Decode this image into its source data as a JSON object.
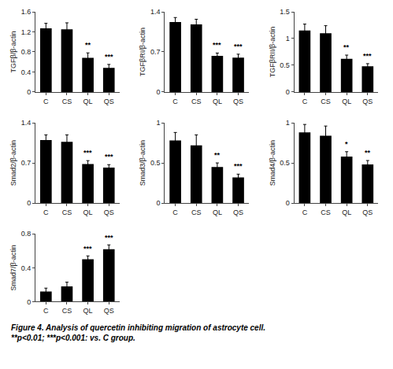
{
  "chart_data": [
    {
      "type": "bar",
      "ylabel": "TGFβ/β-actin",
      "categories": [
        "C",
        "CS",
        "QL",
        "QS"
      ],
      "values": [
        1.27,
        1.25,
        0.68,
        0.48
      ],
      "errors": [
        0.1,
        0.13,
        0.1,
        0.07
      ],
      "color": "#000000",
      "ylim": [
        0,
        1.6
      ],
      "yticks": [
        0,
        0.4,
        0.8,
        1.2,
        1.6
      ],
      "grid": false,
      "annotations": [
        {
          "x": "QL",
          "text": "**"
        },
        {
          "x": "QS",
          "text": "***"
        }
      ]
    },
    {
      "type": "bar",
      "ylabel": "TGFβRI/β-actin",
      "categories": [
        "C",
        "CS",
        "QL",
        "QS"
      ],
      "values": [
        1.22,
        1.18,
        0.63,
        0.6
      ],
      "errors": [
        0.08,
        0.09,
        0.05,
        0.06
      ],
      "color": "#000000",
      "ylim": [
        0,
        1.4
      ],
      "yticks": [
        0,
        0.7,
        1.4
      ],
      "grid": false,
      "annotations": [
        {
          "x": "QL",
          "text": "***"
        },
        {
          "x": "QS",
          "text": "***"
        }
      ]
    },
    {
      "type": "bar",
      "ylabel": "TGFβRII/β-actin",
      "categories": [
        "C",
        "CS",
        "QL",
        "QS"
      ],
      "values": [
        1.15,
        1.1,
        0.62,
        0.48
      ],
      "errors": [
        0.12,
        0.14,
        0.07,
        0.05
      ],
      "color": "#000000",
      "ylim": [
        0,
        1.5
      ],
      "yticks": [
        0,
        0.5,
        1,
        1.5
      ],
      "grid": false,
      "annotations": [
        {
          "x": "QL",
          "text": "**"
        },
        {
          "x": "QS",
          "text": "***"
        }
      ]
    },
    {
      "type": "bar",
      "ylabel": "Smad2/β-actin",
      "categories": [
        "C",
        "CS",
        "QL",
        "QS"
      ],
      "values": [
        1.1,
        1.07,
        0.68,
        0.62
      ],
      "errors": [
        0.09,
        0.12,
        0.06,
        0.05
      ],
      "color": "#000000",
      "ylim": [
        0,
        1.4
      ],
      "yticks": [
        0,
        0.7,
        1.4
      ],
      "grid": false,
      "annotations": [
        {
          "x": "QL",
          "text": "***"
        },
        {
          "x": "QS",
          "text": "***"
        }
      ]
    },
    {
      "type": "bar",
      "ylabel": "Smad3/β-actin",
      "categories": [
        "C",
        "CS",
        "QL",
        "QS"
      ],
      "values": [
        0.78,
        0.72,
        0.45,
        0.32
      ],
      "errors": [
        0.1,
        0.13,
        0.05,
        0.04
      ],
      "color": "#000000",
      "ylim": [
        0,
        1
      ],
      "yticks": [
        0,
        0.5,
        1
      ],
      "grid": false,
      "annotations": [
        {
          "x": "QL",
          "text": "**"
        },
        {
          "x": "QS",
          "text": "***"
        }
      ]
    },
    {
      "type": "bar",
      "ylabel": "Smad4/β-actin",
      "categories": [
        "C",
        "CS",
        "QL",
        "QS"
      ],
      "values": [
        0.88,
        0.84,
        0.58,
        0.48
      ],
      "errors": [
        0.1,
        0.12,
        0.06,
        0.05
      ],
      "color": "#000000",
      "ylim": [
        0,
        1
      ],
      "yticks": [
        0,
        0.5,
        1
      ],
      "grid": false,
      "annotations": [
        {
          "x": "QL",
          "text": "*"
        },
        {
          "x": "QS",
          "text": "**"
        }
      ]
    },
    {
      "type": "bar",
      "ylabel": "Smad7/β-actin",
      "categories": [
        "C",
        "CS",
        "QL",
        "QS"
      ],
      "values": [
        0.12,
        0.18,
        0.5,
        0.62
      ],
      "errors": [
        0.04,
        0.05,
        0.04,
        0.05
      ],
      "color": "#000000",
      "ylim": [
        0,
        0.8
      ],
      "yticks": [
        0,
        0.4,
        0.8
      ],
      "grid": false,
      "annotations": [
        {
          "x": "QL",
          "text": "***"
        },
        {
          "x": "QS",
          "text": "***"
        }
      ]
    }
  ],
  "caption": [
    "Figure 4. Analysis of quercetin inhibiting migration of astrocyte cell.",
    "**p<0.01; ***p<0.001: vs. C group."
  ]
}
